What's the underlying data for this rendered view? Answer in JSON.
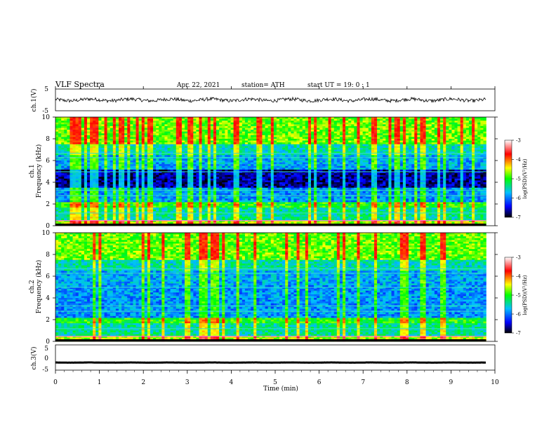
{
  "header": {
    "title": "VLF  Spectra",
    "date": "Apr. 22, 2021",
    "station": "station= ATH",
    "start": "start  UT  =    19: 0  : 1"
  },
  "chart_data": [
    {
      "id": "ch1-waveform",
      "type": "line",
      "ylabel": "ch.1(V)",
      "ylim": [
        -5,
        5
      ],
      "yticks": [
        "5",
        "-5"
      ],
      "xlim": [
        0,
        10
      ],
      "series": [
        {
          "values_description": "",
          "mean": 0.0,
          "amplitude": 1.0
        }
      ]
    },
    {
      "id": "ch1-spectrogram",
      "type": "heatmap",
      "ylabel": "Frequency  (kHz)",
      "channel_label": "ch.1",
      "ylim": [
        0,
        10
      ],
      "yticks": [
        "0",
        "2",
        "4",
        "6",
        "8",
        "10"
      ],
      "xlim": [
        0,
        9.8
      ],
      "colorbar": {
        "label": "log(PSD)(V²/Hz)",
        "range": [
          -7,
          -3
        ],
        "ticks": [
          "-3",
          "-4",
          "-5",
          "-6",
          "-7"
        ]
      }
    },
    {
      "id": "ch2-spectrogram",
      "type": "heatmap",
      "ylabel": "Frequency  (kHz)",
      "channel_label": "ch.2",
      "ylim": [
        0,
        10
      ],
      "yticks": [
        "0",
        "2",
        "4",
        "6",
        "8",
        "10"
      ],
      "xlim": [
        0,
        9.8
      ],
      "colorbar": {
        "label": "log(PSD)(V²/Hz)",
        "range": [
          -7,
          -3
        ],
        "ticks": [
          "-3",
          "-4",
          "-5",
          "-6",
          "-7"
        ]
      }
    },
    {
      "id": "ch3-waveform",
      "type": "line",
      "ylabel": "ch.3(V)",
      "ylim": [
        -5,
        5
      ],
      "yticks": [
        "5",
        "0",
        "-5"
      ],
      "xlim": [
        0,
        10
      ],
      "series": [
        {
          "mean": -2.0,
          "amplitude": 0.1
        }
      ]
    }
  ],
  "xaxis": {
    "label": "Time  (min)",
    "ticks": [
      "0",
      "1",
      "2",
      "3",
      "4",
      "5",
      "6",
      "7",
      "8",
      "9",
      "10"
    ]
  },
  "colors": {
    "cb_stops": [
      "#000000",
      "#0000ff",
      "#00bfff",
      "#00ff00",
      "#ffff00",
      "#ff0000",
      "#ffffff"
    ]
  }
}
